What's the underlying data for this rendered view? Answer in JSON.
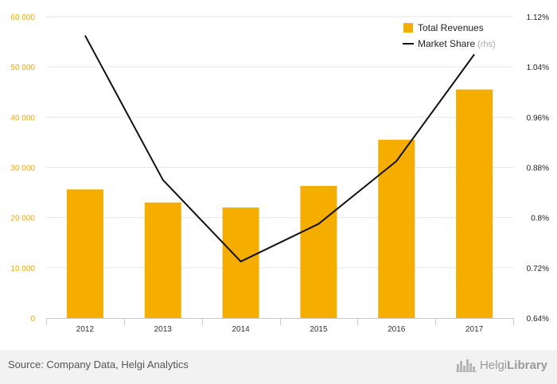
{
  "chart_data": {
    "type": "bar+line",
    "categories": [
      "2012",
      "2013",
      "2014",
      "2015",
      "2016",
      "2017"
    ],
    "series": [
      {
        "name": "Total Revenues",
        "type": "bar",
        "axis": "left",
        "color": "#f5ad00",
        "values": [
          25600,
          23000,
          22000,
          26300,
          35500,
          45500
        ]
      },
      {
        "name": "Market Share",
        "type": "line",
        "axis": "right",
        "color": "#111111",
        "values": [
          1.09,
          0.86,
          0.73,
          0.79,
          0.89,
          1.06
        ]
      }
    ],
    "left_axis": {
      "ylim": [
        0,
        60000
      ],
      "ticks": [
        0,
        10000,
        20000,
        30000,
        40000,
        50000,
        60000
      ],
      "tick_labels": [
        "0",
        "10 000",
        "20 000",
        "30 000",
        "40 000",
        "50 000",
        "60 000"
      ],
      "color": "#f5a800"
    },
    "right_axis": {
      "ylim": [
        0.64,
        1.12
      ],
      "ticks": [
        0.64,
        0.72,
        0.8,
        0.88,
        0.96,
        1.04,
        1.12
      ],
      "tick_labels": [
        "0.64%",
        "0.72%",
        "0.8%",
        "0.88%",
        "0.96%",
        "1.04%",
        "1.12%"
      ]
    },
    "legend": {
      "position": "top-right",
      "items": [
        {
          "label": "Total Revenues",
          "note": "",
          "color": "#f5ad00",
          "kind": "box"
        },
        {
          "label": "Market Share",
          "note": "(rhs)",
          "color": "#111111",
          "kind": "line"
        }
      ]
    },
    "grid": true
  },
  "footer": {
    "source": "Source: Company Data, Helgi Analytics",
    "brand_part1": "Helgi",
    "brand_part2": "Library",
    "brand_icon": "city-skyline-icon"
  }
}
